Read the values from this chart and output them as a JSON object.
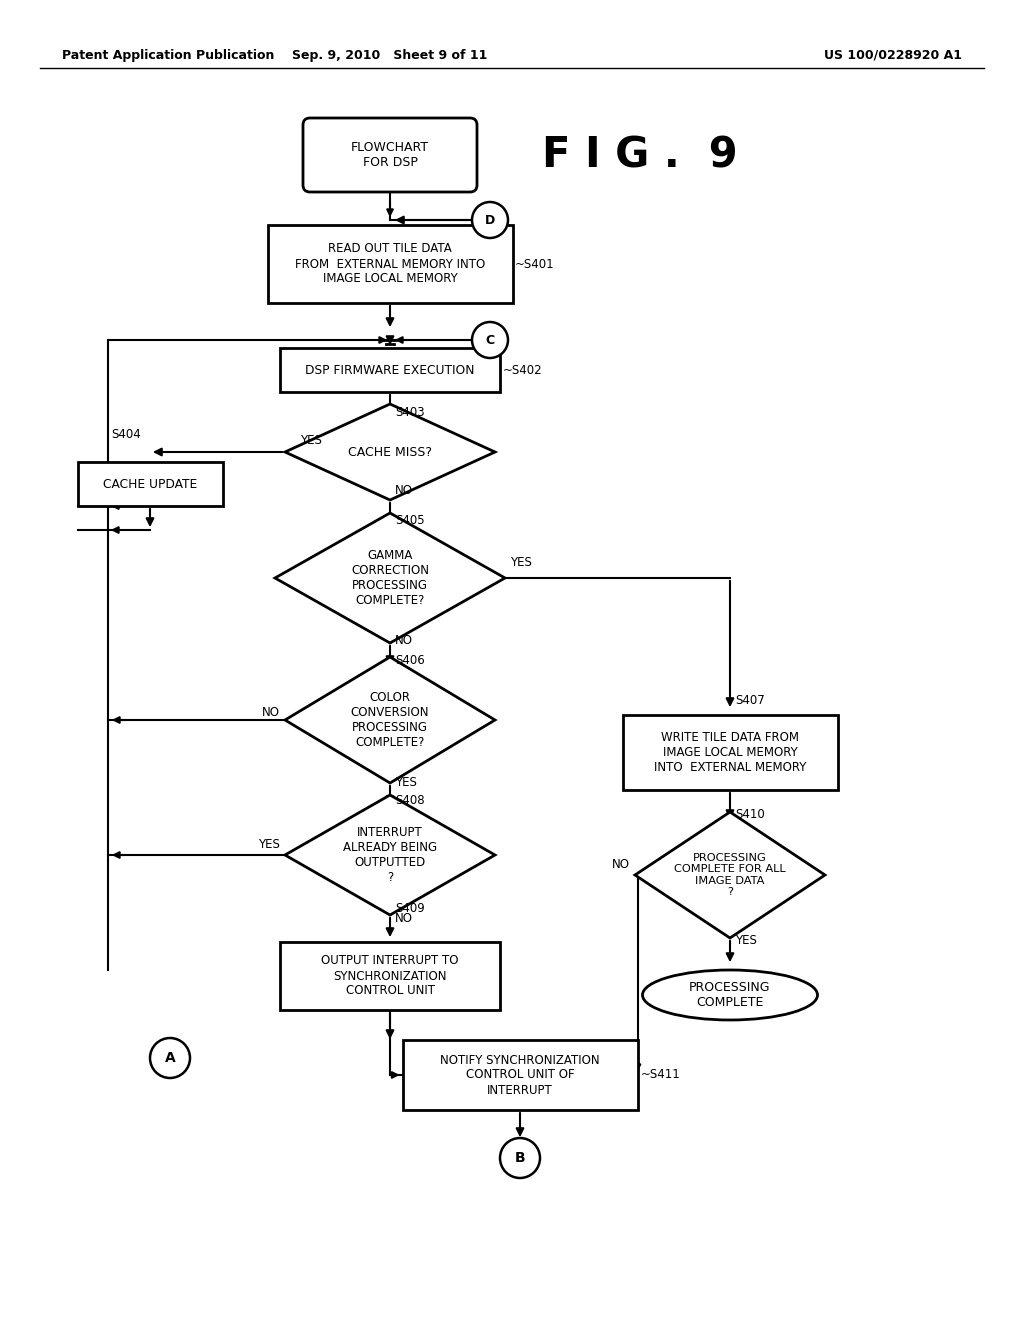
{
  "bg_color": "#ffffff",
  "text_color": "#000000",
  "line_color": "#000000",
  "header_left": "Patent Application Publication",
  "header_mid": "Sep. 9, 2010   Sheet 9 of 11",
  "header_right": "US 100/0228920 A1",
  "fig_title": "F I G .  9"
}
